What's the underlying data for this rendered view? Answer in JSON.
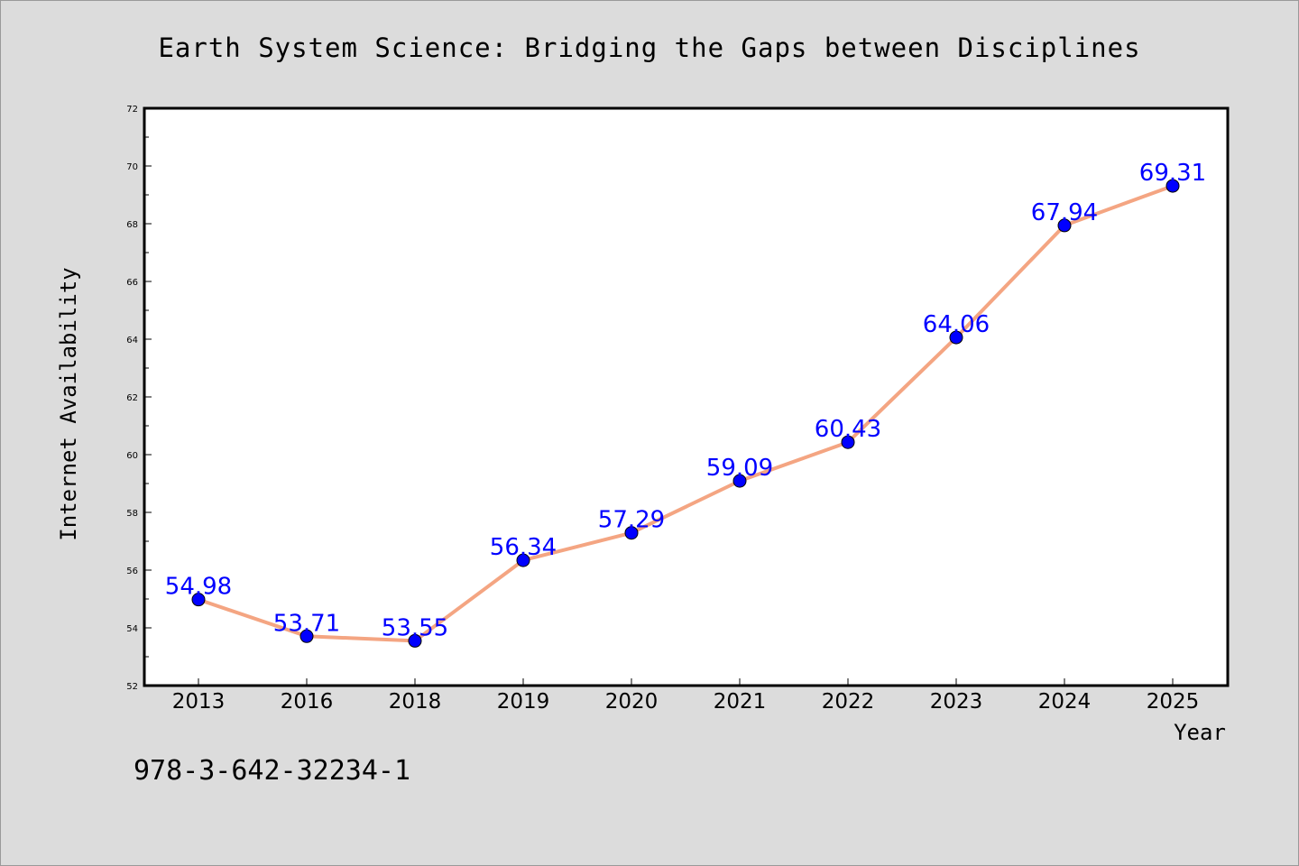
{
  "chart_data": {
    "type": "line",
    "title": "Earth System Science: Bridging the Gaps between Disciplines",
    "xlabel": "Year",
    "ylabel": "Internet Availability",
    "categories": [
      "2013",
      "2016",
      "2018",
      "2019",
      "2020",
      "2021",
      "2022",
      "2023",
      "2024",
      "2025"
    ],
    "values": [
      54.98,
      53.71,
      53.55,
      56.34,
      57.29,
      59.09,
      60.43,
      64.06,
      67.94,
      69.31
    ],
    "data_labels": [
      "54.98",
      "53.71",
      "53.55",
      "56.34",
      "57.29",
      "59.09",
      "60.43",
      "64.06",
      "67.94",
      "69.31"
    ],
    "ylim": [
      52,
      72
    ],
    "yticks": [
      "52",
      "54",
      "56",
      "58",
      "60",
      "62",
      "64",
      "66",
      "68",
      "70",
      "72"
    ],
    "grid": false,
    "line_color": "#f4a582",
    "marker_color": "#0000ff",
    "label_color": "#0000ff"
  },
  "footer": {
    "isbn": "978-3-642-32234-1"
  }
}
